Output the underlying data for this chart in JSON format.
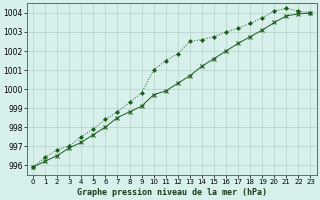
{
  "title": "Graphe pression niveau de la mer (hPa)",
  "background_color": "#d8f0ec",
  "grid_color": "#b8d0cc",
  "line_color": "#1a5c1a",
  "xlim": [
    -0.5,
    23.5
  ],
  "ylim": [
    995.5,
    1004.5
  ],
  "yticks": [
    996,
    997,
    998,
    999,
    1000,
    1001,
    1002,
    1003,
    1004
  ],
  "xticks": [
    0,
    1,
    2,
    3,
    4,
    5,
    6,
    7,
    8,
    9,
    10,
    11,
    12,
    13,
    14,
    15,
    16,
    17,
    18,
    19,
    20,
    21,
    22,
    23
  ],
  "line1_x": [
    0,
    1,
    2,
    3,
    4,
    5,
    6,
    7,
    8,
    9,
    10,
    11,
    12,
    13,
    14,
    15,
    16,
    17,
    18,
    19,
    20,
    21,
    22,
    23
  ],
  "line1_y": [
    995.9,
    996.4,
    996.8,
    997.0,
    997.5,
    997.9,
    998.4,
    998.8,
    999.3,
    999.8,
    1001.0,
    1001.5,
    1001.85,
    1002.5,
    1002.6,
    1002.75,
    1003.0,
    1003.2,
    1003.45,
    1003.75,
    1004.1,
    1004.25,
    1004.1,
    1004.0
  ],
  "line2_x": [
    0,
    1,
    2,
    3,
    4,
    5,
    6,
    7,
    8,
    9,
    10,
    11,
    12,
    13,
    14,
    15,
    16,
    17,
    18,
    19,
    20,
    21,
    22,
    23
  ],
  "line2_y": [
    995.9,
    996.2,
    996.5,
    996.9,
    997.2,
    997.6,
    998.0,
    998.5,
    998.8,
    999.1,
    999.7,
    999.9,
    1000.3,
    1000.7,
    1001.2,
    1001.6,
    1002.0,
    1002.4,
    1002.75,
    1003.1,
    1003.5,
    1003.85,
    1003.95,
    1004.0
  ]
}
